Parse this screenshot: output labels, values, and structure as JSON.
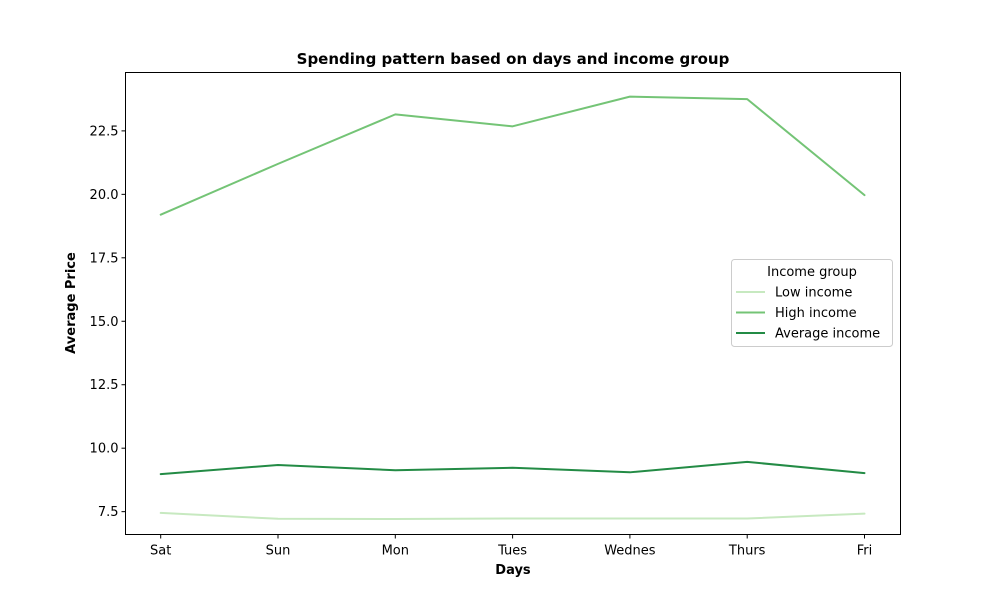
{
  "chart_data": {
    "type": "line",
    "title": "Spending pattern based on days and income group",
    "xlabel": "Days",
    "ylabel": "Average Price",
    "categories": [
      "Sat",
      "Sun",
      "Mon",
      "Tues",
      "Wednes",
      "Thurs",
      "Fri"
    ],
    "ylim": [
      6.6,
      24.8
    ],
    "yticks": [
      7.5,
      10.0,
      12.5,
      15.0,
      17.5,
      20.0,
      22.5
    ],
    "grid": false,
    "legend": {
      "title": "Income group",
      "placement": "center-right"
    },
    "series": [
      {
        "name": "Low income",
        "color": "#c7e9c0",
        "values": [
          7.45,
          7.22,
          7.21,
          7.23,
          7.23,
          7.23,
          7.42
        ]
      },
      {
        "name": "High income",
        "color": "#74c476",
        "values": [
          19.2,
          21.2,
          23.15,
          22.68,
          23.85,
          23.75,
          19.97
        ]
      },
      {
        "name": "Average income",
        "color": "#238b45",
        "values": [
          8.98,
          9.34,
          9.13,
          9.23,
          9.05,
          9.46,
          9.02
        ]
      }
    ]
  }
}
